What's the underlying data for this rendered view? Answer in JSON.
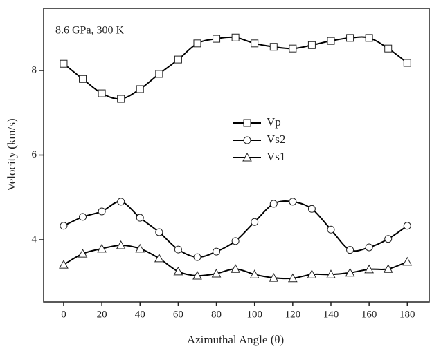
{
  "chart_data": {
    "type": "line",
    "annotation": "8.6 GPa, 300 K",
    "x_label": "Azimuthal Angle (θ)",
    "y_label": "Velocity (km/s)",
    "x": [
      0,
      10,
      20,
      30,
      40,
      50,
      60,
      70,
      80,
      90,
      100,
      110,
      120,
      130,
      140,
      150,
      160,
      170,
      180
    ],
    "series": [
      {
        "name": "Vp",
        "color": "#000000",
        "marker": "square",
        "values": [
          8.16,
          7.8,
          7.46,
          7.33,
          7.56,
          7.92,
          8.26,
          8.64,
          8.75,
          8.78,
          8.64,
          8.56,
          8.52,
          8.6,
          8.7,
          8.77,
          8.77,
          8.52,
          8.18
        ]
      },
      {
        "name": "Vs2",
        "color": "#000000",
        "marker": "circle",
        "values": [
          4.33,
          4.54,
          4.67,
          4.9,
          4.52,
          4.18,
          3.77,
          3.59,
          3.72,
          3.97,
          4.42,
          4.85,
          4.9,
          4.73,
          4.24,
          3.76,
          3.82,
          4.02,
          4.33
        ]
      },
      {
        "name": "Vs1",
        "color": "#000000",
        "marker": "triangle",
        "values": [
          3.41,
          3.67,
          3.79,
          3.87,
          3.79,
          3.56,
          3.25,
          3.15,
          3.2,
          3.31,
          3.18,
          3.1,
          3.09,
          3.18,
          3.18,
          3.22,
          3.3,
          3.31,
          3.48
        ]
      }
    ],
    "xlim": [
      -10.5,
      191.5
    ],
    "xticks": [
      0,
      20,
      40,
      60,
      80,
      100,
      120,
      140,
      160,
      180
    ],
    "ylim": [
      2.53,
      9.47
    ],
    "yticks": [
      4,
      6,
      8
    ],
    "grid": false,
    "legend": "center",
    "smooth": true
  }
}
